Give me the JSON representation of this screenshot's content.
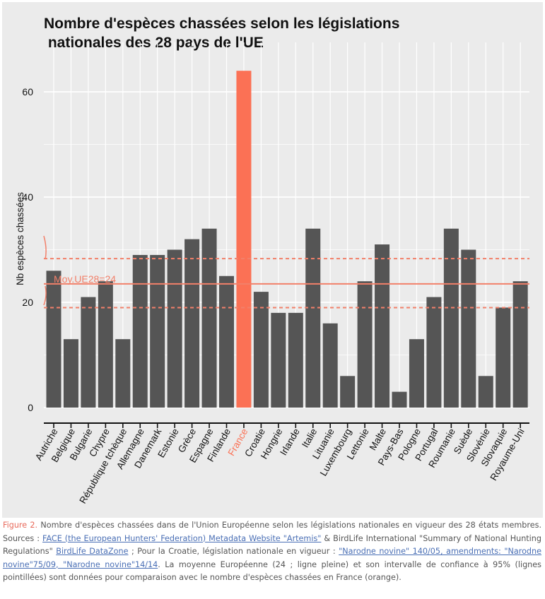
{
  "chart_data": {
    "type": "bar",
    "title": "Nombre d'espèces chassées selon les législations\n nationales des 28 pays de l'UE",
    "xlabel": "",
    "ylabel": "Nb espèces chassées",
    "ylim": [
      0,
      66
    ],
    "yticks": [
      0,
      20,
      40,
      60
    ],
    "grid": true,
    "categories": [
      "Autriche",
      "Belgique",
      "Bulgarie",
      "Chypre",
      "République tchèque",
      "Allemagne",
      "Danemark",
      "Estonie",
      "Grèce",
      "Espagne",
      "Finlande",
      "France",
      "Croatie",
      "Hongrie",
      "Irlande",
      "Italie",
      "Lituanie",
      "Luxembourg",
      "Lettonie",
      "Malte",
      "Pays-Bas",
      "Pologne",
      "Portugal",
      "Roumanie",
      "Suède",
      "Slovénie",
      "Slovaquie",
      "Royaume-Uni"
    ],
    "values": [
      26,
      13,
      21,
      24,
      13,
      29,
      29,
      30,
      32,
      34,
      25,
      64,
      22,
      18,
      18,
      34,
      16,
      6,
      24,
      31,
      3,
      13,
      21,
      34,
      30,
      6,
      19,
      24
    ],
    "highlight": "France",
    "mean": 23.5,
    "ci": [
      19,
      28.3
    ],
    "mean_label": "Moy.UE28=24",
    "colors": {
      "bar": "#555555",
      "highlight": "#fb7155",
      "mean_line": "#f2806a",
      "panel": "#ebebeb",
      "grid": "#ffffff"
    }
  },
  "caption": {
    "figure_label": "Figure 2.",
    "text_1": " Nombre d'espèces chassées dans de l'Union Européenne selon les législations nationales en vigueur des 28 états membres. Sources : ",
    "link_1": "FACE (the European Hunters' Federation) Metadata Website \"Artemis\"",
    "text_2": " & BirdLife International \"Summary of National Hunting Regulations\" ",
    "link_2": "BirdLife DataZone",
    "text_3": " ; Pour la Croatie, législation nationale en vigueur : ",
    "link_3": "\"Narodne novine\" 140/05, amendments: \"Narodne novine\"75/09, \"Narodne novine\"14/14",
    "text_4": ". La moyenne Européenne (24 ; ligne pleine) et son intervalle de confiance à 95% (lignes pointillées) sont données pour comparaison avec le nombre d'espèces chassées en France (orange)."
  }
}
